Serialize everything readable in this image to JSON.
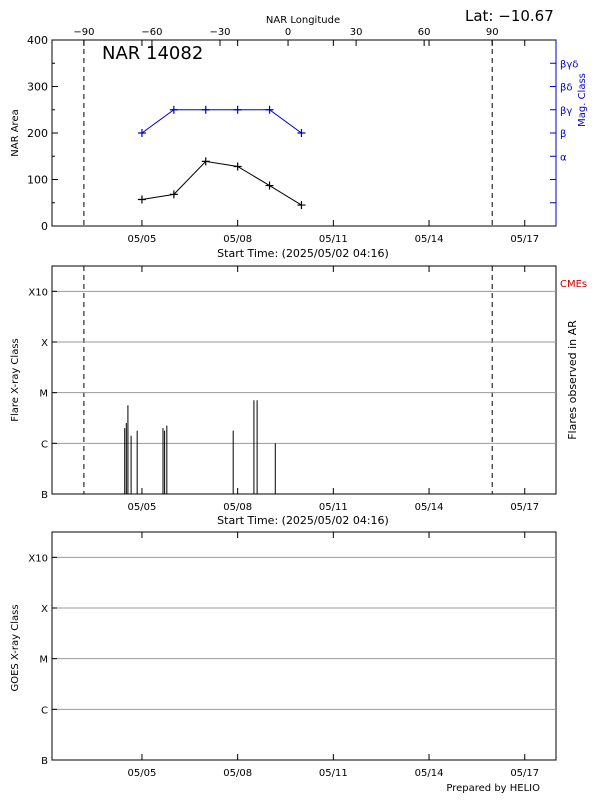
{
  "header": {
    "lat_text": "Lat: −10.67",
    "top_axis_label": "NAR Longitude",
    "top_ticks": [
      "−90",
      "−60",
      "−30",
      "0",
      "30",
      "60",
      "90"
    ],
    "top_tick_values": [
      -90,
      -60,
      -30,
      0,
      30,
      60,
      90
    ]
  },
  "footer": {
    "prepared_by": "Prepared by HELIO"
  },
  "colors": {
    "axis": "#000000",
    "mag_class": "#0000cc",
    "cme": "#cc0000",
    "grid": "#9a9a9a"
  },
  "x_axis": {
    "range_days": [
      0,
      15.8
    ],
    "tick_days": [
      2.82,
      5.82,
      8.82,
      11.82,
      14.82
    ],
    "tick_labels": [
      "05/05",
      "05/08",
      "05/11",
      "05/14",
      "05/17"
    ],
    "start_time_label": "Start Time: (2025/05/02 04:16)"
  },
  "limb_lines_days": [
    1.0,
    13.8
  ],
  "chart_data": [
    {
      "type": "line",
      "title": "NAR 14082",
      "ylabel": "NAR Area",
      "y2label": "Mag. Class",
      "ylim": [
        0,
        400
      ],
      "yticks": [
        0,
        100,
        200,
        300,
        400
      ],
      "y2_levels": [
        "α",
        "β",
        "βγ",
        "βδ",
        "βγδ"
      ],
      "series": [
        {
          "role": "area",
          "x": [
            2.82,
            3.82,
            4.82,
            5.82,
            6.82,
            7.82
          ],
          "values": [
            57,
            68,
            139,
            128,
            87,
            45
          ]
        },
        {
          "role": "mag_class",
          "x": [
            2.82,
            3.82,
            4.82,
            5.82,
            6.82,
            7.82
          ],
          "values": [
            200,
            250,
            250,
            250,
            250,
            200
          ]
        }
      ]
    },
    {
      "type": "bar",
      "ylabel": "Flare X-ray Class",
      "y2label": "Flares observed in AR",
      "legend": "CMEs",
      "levels": [
        "B",
        "C",
        "M",
        "X",
        "X10"
      ],
      "flares": [
        {
          "x": 2.28,
          "level": 1.3
        },
        {
          "x": 2.33,
          "level": 1.4
        },
        {
          "x": 2.38,
          "level": 1.75
        },
        {
          "x": 2.48,
          "level": 1.15
        },
        {
          "x": 2.67,
          "level": 1.25
        },
        {
          "x": 3.48,
          "level": 1.3
        },
        {
          "x": 3.53,
          "level": 1.25
        },
        {
          "x": 3.6,
          "level": 1.35
        },
        {
          "x": 5.68,
          "level": 1.25
        },
        {
          "x": 6.33,
          "level": 1.85
        },
        {
          "x": 6.43,
          "level": 1.85
        },
        {
          "x": 7.0,
          "level": 1.0
        }
      ]
    },
    {
      "type": "bar",
      "ylabel": "GOES X-ray Class",
      "levels": [
        "B",
        "C",
        "M",
        "X",
        "X10"
      ],
      "values": []
    }
  ]
}
